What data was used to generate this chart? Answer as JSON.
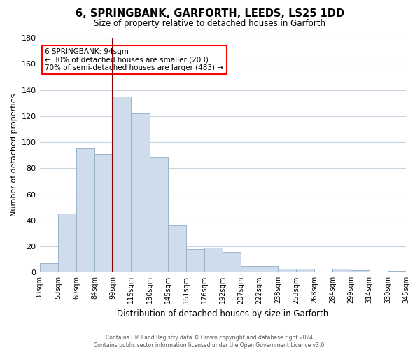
{
  "title": "6, SPRINGBANK, GARFORTH, LEEDS, LS25 1DD",
  "subtitle": "Size of property relative to detached houses in Garforth",
  "xlabel": "Distribution of detached houses by size in Garforth",
  "ylabel": "Number of detached properties",
  "bar_color": "#cfdceb",
  "bar_edge_color": "#9ab4cc",
  "background_color": "#ffffff",
  "grid_color": "#c8d4e0",
  "tick_labels": [
    "38sqm",
    "53sqm",
    "69sqm",
    "84sqm",
    "99sqm",
    "115sqm",
    "130sqm",
    "145sqm",
    "161sqm",
    "176sqm",
    "192sqm",
    "207sqm",
    "222sqm",
    "238sqm",
    "253sqm",
    "268sqm",
    "284sqm",
    "299sqm",
    "314sqm",
    "330sqm",
    "345sqm"
  ],
  "values": [
    7,
    45,
    95,
    91,
    135,
    122,
    89,
    36,
    18,
    19,
    16,
    5,
    5,
    3,
    3,
    0,
    3,
    2,
    0,
    1
  ],
  "ylim": [
    0,
    180
  ],
  "yticks": [
    0,
    20,
    40,
    60,
    80,
    100,
    120,
    140,
    160,
    180
  ],
  "property_label": "6 SPRINGBANK: 94sqm",
  "annotation_line1": "← 30% of detached houses are smaller (203)",
  "annotation_line2": "70% of semi-detached houses are larger (483) →",
  "red_line_x": 4.0,
  "footer_line1": "Contains HM Land Registry data © Crown copyright and database right 2024.",
  "footer_line2": "Contains public sector information licensed under the Open Government Licence v3.0."
}
